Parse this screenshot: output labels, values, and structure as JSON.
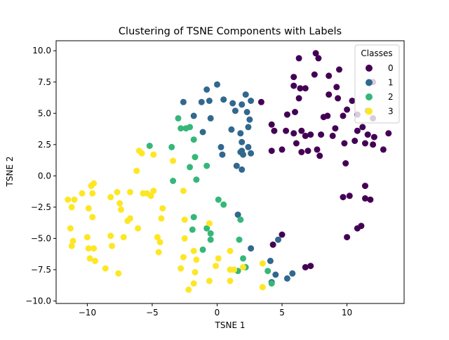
{
  "chart_data": {
    "type": "scatter",
    "title": "Clustering of TSNE Components with Labels",
    "xlabel": "TSNE 1",
    "ylabel": "TSNE 2",
    "xlim": [
      -12.4,
      14.4
    ],
    "ylim": [
      -10.2,
      10.8
    ],
    "xticks": [
      -10,
      -5,
      0,
      5,
      10
    ],
    "xtick_labels": [
      "−10",
      "−5",
      "0",
      "5",
      "10"
    ],
    "yticks": [
      -10,
      -7.5,
      -5,
      -2.5,
      0,
      2.5,
      5,
      7.5,
      10
    ],
    "ytick_labels": [
      "−10.0",
      "−7.5",
      "−5.0",
      "−2.5",
      "0.0",
      "2.5",
      "5.0",
      "7.5",
      "10.0"
    ],
    "grid": false,
    "legend": {
      "title": "Classes",
      "placement": "top-right"
    },
    "series": [
      {
        "name": "0",
        "color": "#440154",
        "points": [
          [
            6.3,
            9.4
          ],
          [
            7.6,
            9.8
          ],
          [
            7.8,
            9.4
          ],
          [
            9.4,
            8.5
          ],
          [
            5.9,
            7.9
          ],
          [
            7.5,
            8.1
          ],
          [
            8.6,
            8.0
          ],
          [
            5.9,
            7.2
          ],
          [
            6.4,
            7.0
          ],
          [
            6.8,
            7.0
          ],
          [
            9.2,
            7.1
          ],
          [
            12.0,
            7.5
          ],
          [
            6.3,
            6.2
          ],
          [
            8.6,
            6.5
          ],
          [
            9.3,
            6.2
          ],
          [
            3.4,
            5.9
          ],
          [
            6.0,
            5.1
          ],
          [
            5.4,
            4.9
          ],
          [
            10.4,
            6.0
          ],
          [
            10.0,
            5.3
          ],
          [
            11.6,
            5.2
          ],
          [
            8.2,
            4.7
          ],
          [
            8.5,
            4.8
          ],
          [
            9.7,
            4.8
          ],
          [
            10.8,
            4.9
          ],
          [
            12.0,
            4.6
          ],
          [
            4.2,
            4.1
          ],
          [
            4.4,
            3.6
          ],
          [
            5.3,
            3.6
          ],
          [
            5.9,
            3.4
          ],
          [
            6.1,
            2.6
          ],
          [
            6.5,
            3.6
          ],
          [
            6.8,
            3.2
          ],
          [
            7.2,
            3.3
          ],
          [
            8.0,
            3.3
          ],
          [
            8.9,
            3.2
          ],
          [
            9.1,
            3.8
          ],
          [
            10.8,
            3.6
          ],
          [
            11.2,
            3.9
          ],
          [
            11.6,
            3.3
          ],
          [
            12.1,
            3.1
          ],
          [
            13.2,
            3.4
          ],
          [
            4.2,
            2.0
          ],
          [
            5.0,
            2.1
          ],
          [
            6.5,
            1.9
          ],
          [
            7.0,
            2.0
          ],
          [
            7.7,
            2.1
          ],
          [
            7.9,
            1.6
          ],
          [
            9.8,
            2.6
          ],
          [
            10.6,
            2.8
          ],
          [
            11.4,
            2.6
          ],
          [
            12.0,
            2.5
          ],
          [
            12.8,
            2.1
          ],
          [
            9.9,
            1.0
          ],
          [
            11.4,
            -0.8
          ],
          [
            9.7,
            -1.7
          ],
          [
            10.2,
            -1.6
          ],
          [
            11.4,
            -1.8
          ],
          [
            11.8,
            -1.9
          ],
          [
            10.8,
            -4.2
          ],
          [
            11.1,
            -4.0
          ],
          [
            10.0,
            -4.9
          ],
          [
            5.0,
            -4.7
          ],
          [
            4.3,
            -5.5
          ],
          [
            6.8,
            -7.3
          ],
          [
            7.2,
            -7.2
          ]
        ]
      },
      {
        "name": "1",
        "color": "#31688e",
        "points": [
          [
            0.0,
            7.3
          ],
          [
            -0.8,
            6.9
          ],
          [
            2.2,
            6.5
          ],
          [
            -1.2,
            5.9
          ],
          [
            -0.6,
            6.0
          ],
          [
            0.5,
            6.1
          ],
          [
            1.2,
            5.8
          ],
          [
            1.9,
            5.7
          ],
          [
            2.6,
            6.0
          ],
          [
            1.4,
            5.2
          ],
          [
            2.3,
            5.1
          ],
          [
            -1.8,
            4.8
          ],
          [
            -0.5,
            4.6
          ],
          [
            2.5,
            4.5
          ],
          [
            1.1,
            3.7
          ],
          [
            2.4,
            3.9
          ],
          [
            -1.1,
            3.5
          ],
          [
            1.8,
            3.4
          ],
          [
            2.4,
            2.3
          ],
          [
            1.9,
            2.7
          ],
          [
            1.9,
            2.0
          ],
          [
            2.6,
            1.8
          ],
          [
            0.4,
            1.7
          ],
          [
            2.0,
            1.7
          ],
          [
            1.8,
            1.9
          ],
          [
            0.3,
            2.3
          ],
          [
            1.5,
            0.8
          ],
          [
            1.9,
            0.5
          ],
          [
            -2.6,
            5.9
          ],
          [
            1.6,
            -3.1
          ],
          [
            2.6,
            -5.8
          ],
          [
            4.1,
            -6.8
          ],
          [
            4.5,
            -7.9
          ],
          [
            5.4,
            -8.2
          ],
          [
            5.8,
            -7.8
          ],
          [
            4.7,
            -5.1
          ],
          [
            4.2,
            -8.5
          ]
        ]
      },
      {
        "name": "2",
        "color": "#35b779",
        "points": [
          [
            -3.0,
            4.6
          ],
          [
            -2.8,
            3.8
          ],
          [
            -2.1,
            3.9
          ],
          [
            -2.4,
            3.8
          ],
          [
            -1.8,
            2.9
          ],
          [
            -5.2,
            2.4
          ],
          [
            -3.5,
            2.3
          ],
          [
            -1.7,
            1.5
          ],
          [
            -0.8,
            0.8
          ],
          [
            -2.1,
            0.7
          ],
          [
            -3.4,
            -0.4
          ],
          [
            -1.6,
            -0.3
          ],
          [
            0.1,
            -1.9
          ],
          [
            0.5,
            -2.3
          ],
          [
            -1.8,
            -3.3
          ],
          [
            -0.8,
            -4.2
          ],
          [
            1.8,
            -3.5
          ],
          [
            -1.9,
            -4.3
          ],
          [
            -0.5,
            -4.6
          ],
          [
            -0.5,
            -5.1
          ],
          [
            1.7,
            -5.1
          ],
          [
            -1.1,
            -5.9
          ],
          [
            2.0,
            -6.6
          ],
          [
            2.2,
            -7.3
          ],
          [
            1.6,
            -7.6
          ],
          [
            3.9,
            -7.6
          ],
          [
            4.2,
            -8.6
          ]
        ]
      },
      {
        "name": "3",
        "color": "#fde725",
        "points": [
          [
            -6.0,
            2.0
          ],
          [
            -5.8,
            1.8
          ],
          [
            -4.9,
            1.7
          ],
          [
            -6.2,
            0.4
          ],
          [
            -3.4,
            1.2
          ],
          [
            -9.5,
            -0.6
          ],
          [
            -9.7,
            -0.8
          ],
          [
            -10.4,
            -1.4
          ],
          [
            -11.5,
            -1.9
          ],
          [
            -11.0,
            -1.9
          ],
          [
            -9.6,
            -1.4
          ],
          [
            -8.2,
            -1.7
          ],
          [
            -7.7,
            -1.3
          ],
          [
            -6.7,
            -1.3
          ],
          [
            -5.7,
            -1.4
          ],
          [
            -5.4,
            -1.4
          ],
          [
            -4.9,
            -1.2
          ],
          [
            -5.1,
            -1.6
          ],
          [
            -2.6,
            -1.2
          ],
          [
            -7.5,
            -2.2
          ],
          [
            -11.2,
            -2.5
          ],
          [
            -9.9,
            -2.6
          ],
          [
            -7.4,
            -2.7
          ],
          [
            -4.2,
            -2.6
          ],
          [
            -9.6,
            -3.3
          ],
          [
            -6.7,
            -3.4
          ],
          [
            -6.9,
            -3.6
          ],
          [
            -4.3,
            -3.4
          ],
          [
            -2.5,
            -3.5
          ],
          [
            -0.6,
            -3.8
          ],
          [
            -6.1,
            -4.2
          ],
          [
            -11.3,
            -4.2
          ],
          [
            -10.0,
            -4.9
          ],
          [
            -8.2,
            -4.8
          ],
          [
            -7.2,
            -4.9
          ],
          [
            -4.6,
            -4.9
          ],
          [
            -4.4,
            -5.3
          ],
          [
            -2.5,
            -5.0
          ],
          [
            -11.1,
            -5.2
          ],
          [
            -11.2,
            -5.6
          ],
          [
            -9.9,
            -5.8
          ],
          [
            -9.5,
            -5.8
          ],
          [
            -8.1,
            -5.6
          ],
          [
            -4.5,
            -6.1
          ],
          [
            -1.8,
            -6.0
          ],
          [
            -9.8,
            -6.6
          ],
          [
            -9.4,
            -6.8
          ],
          [
            -2.6,
            -6.5
          ],
          [
            -1.6,
            -6.7
          ],
          [
            1.0,
            -6.0
          ],
          [
            0.1,
            -6.6
          ],
          [
            -8.6,
            -7.4
          ],
          [
            -7.6,
            -7.8
          ],
          [
            -2.8,
            -7.4
          ],
          [
            -1.7,
            -7.7
          ],
          [
            -0.1,
            -7.2
          ],
          [
            1.0,
            -7.5
          ],
          [
            1.3,
            -7.5
          ],
          [
            2.0,
            -7.3
          ],
          [
            3.5,
            -7.0
          ],
          [
            -2.2,
            -9.1
          ],
          [
            -1.8,
            -8.6
          ],
          [
            -0.6,
            -8.4
          ],
          [
            1.0,
            -8.4
          ],
          [
            3.5,
            -8.9
          ]
        ]
      }
    ]
  }
}
